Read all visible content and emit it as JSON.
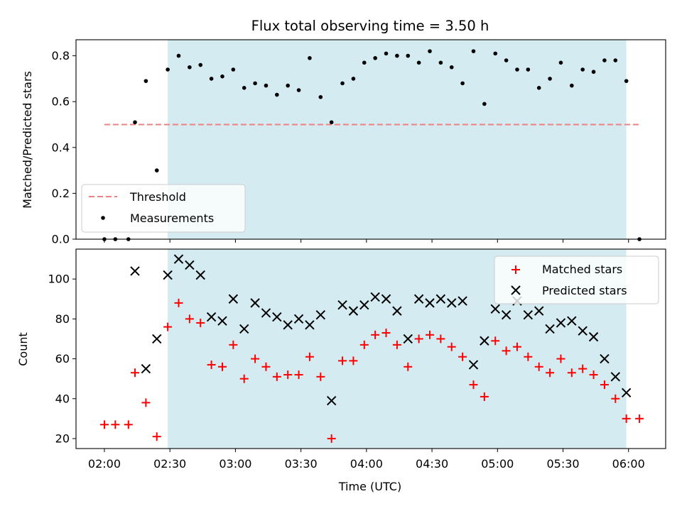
{
  "chart_data": [
    {
      "type": "scatter",
      "title": "Flux total observing time = 3.50 h",
      "xlabel": "",
      "ylabel": "Matched/Predicted stars",
      "xlim": [
        "01:47",
        "06:17"
      ],
      "ylim": [
        0,
        0.87
      ],
      "yticks": [
        0.0,
        0.2,
        0.4,
        0.6,
        0.8
      ],
      "ytick_labels": [
        "0.0",
        "0.2",
        "0.4",
        "0.6",
        "0.8"
      ],
      "shaded_region": {
        "start": "02:29",
        "end": "05:59",
        "color": "#d3ebf1"
      },
      "threshold": {
        "name": "Threshold",
        "value": 0.5,
        "x_start": "02:00",
        "x_end": "06:05",
        "color": "#f08080"
      },
      "legend": {
        "position": "lower-left",
        "entries": [
          "Threshold",
          "Measurements"
        ]
      },
      "series": [
        {
          "name": "Measurements",
          "color": "#000000",
          "marker": "dot",
          "points": [
            [
              "02:00",
              0.0
            ],
            [
              "02:05",
              0.0
            ],
            [
              "02:11",
              0.0
            ],
            [
              "02:14",
              0.51
            ],
            [
              "02:19",
              0.69
            ],
            [
              "02:24",
              0.3
            ],
            [
              "02:29",
              0.74
            ],
            [
              "02:34",
              0.8
            ],
            [
              "02:39",
              0.75
            ],
            [
              "02:44",
              0.76
            ],
            [
              "02:49",
              0.7
            ],
            [
              "02:54",
              0.71
            ],
            [
              "02:59",
              0.74
            ],
            [
              "03:04",
              0.66
            ],
            [
              "03:09",
              0.68
            ],
            [
              "03:14",
              0.67
            ],
            [
              "03:19",
              0.63
            ],
            [
              "03:24",
              0.67
            ],
            [
              "03:29",
              0.65
            ],
            [
              "03:34",
              0.79
            ],
            [
              "03:39",
              0.62
            ],
            [
              "03:44",
              0.51
            ],
            [
              "03:49",
              0.68
            ],
            [
              "03:54",
              0.7
            ],
            [
              "03:59",
              0.77
            ],
            [
              "04:04",
              0.79
            ],
            [
              "04:09",
              0.81
            ],
            [
              "04:14",
              0.8
            ],
            [
              "04:19",
              0.8
            ],
            [
              "04:24",
              0.77
            ],
            [
              "04:29",
              0.82
            ],
            [
              "04:34",
              0.77
            ],
            [
              "04:39",
              0.75
            ],
            [
              "04:44",
              0.68
            ],
            [
              "04:49",
              0.82
            ],
            [
              "04:54",
              0.59
            ],
            [
              "04:59",
              0.81
            ],
            [
              "05:04",
              0.78
            ],
            [
              "05:09",
              0.74
            ],
            [
              "05:14",
              0.74
            ],
            [
              "05:19",
              0.66
            ],
            [
              "05:24",
              0.7
            ],
            [
              "05:29",
              0.77
            ],
            [
              "05:34",
              0.67
            ],
            [
              "05:39",
              0.74
            ],
            [
              "05:44",
              0.73
            ],
            [
              "05:49",
              0.78
            ],
            [
              "05:54",
              0.78
            ],
            [
              "05:59",
              0.69
            ],
            [
              "06:05",
              0.0
            ]
          ]
        }
      ]
    },
    {
      "type": "scatter",
      "title": "",
      "xlabel": "Time (UTC)",
      "ylabel": "Count",
      "xlim": [
        "01:47",
        "06:17"
      ],
      "ylim": [
        15,
        115
      ],
      "yticks": [
        20,
        40,
        60,
        80,
        100
      ],
      "ytick_labels": [
        "20",
        "40",
        "60",
        "80",
        "100"
      ],
      "xticks": [
        "02:00",
        "02:30",
        "03:00",
        "03:30",
        "04:00",
        "04:30",
        "05:00",
        "05:30",
        "06:00"
      ],
      "shaded_region": {
        "start": "02:29",
        "end": "05:59",
        "color": "#d3ebf1"
      },
      "legend": {
        "position": "top-right",
        "entries": [
          "Matched stars",
          "Predicted stars"
        ]
      },
      "series": [
        {
          "name": "Matched stars",
          "color": "#ff0000",
          "marker": "plus",
          "points": [
            [
              "02:00",
              27
            ],
            [
              "02:05",
              27
            ],
            [
              "02:11",
              27
            ],
            [
              "02:14",
              53
            ],
            [
              "02:19",
              38
            ],
            [
              "02:24",
              21
            ],
            [
              "02:29",
              76
            ],
            [
              "02:34",
              88
            ],
            [
              "02:39",
              80
            ],
            [
              "02:44",
              78
            ],
            [
              "02:49",
              57
            ],
            [
              "02:54",
              56
            ],
            [
              "02:59",
              67
            ],
            [
              "03:04",
              50
            ],
            [
              "03:09",
              60
            ],
            [
              "03:14",
              56
            ],
            [
              "03:19",
              51
            ],
            [
              "03:24",
              52
            ],
            [
              "03:29",
              52
            ],
            [
              "03:34",
              61
            ],
            [
              "03:39",
              51
            ],
            [
              "03:44",
              20
            ],
            [
              "03:49",
              59
            ],
            [
              "03:54",
              59
            ],
            [
              "03:59",
              67
            ],
            [
              "04:04",
              72
            ],
            [
              "04:09",
              73
            ],
            [
              "04:14",
              67
            ],
            [
              "04:19",
              56
            ],
            [
              "04:24",
              70
            ],
            [
              "04:29",
              72
            ],
            [
              "04:34",
              70
            ],
            [
              "04:39",
              66
            ],
            [
              "04:44",
              61
            ],
            [
              "04:49",
              47
            ],
            [
              "04:54",
              41
            ],
            [
              "04:59",
              69
            ],
            [
              "05:04",
              64
            ],
            [
              "05:09",
              66
            ],
            [
              "05:14",
              61
            ],
            [
              "05:19",
              56
            ],
            [
              "05:24",
              53
            ],
            [
              "05:29",
              60
            ],
            [
              "05:34",
              53
            ],
            [
              "05:39",
              55
            ],
            [
              "05:44",
              52
            ],
            [
              "05:49",
              47
            ],
            [
              "05:54",
              40
            ],
            [
              "05:59",
              30
            ],
            [
              "06:05",
              30
            ]
          ]
        },
        {
          "name": "Predicted stars",
          "color": "#000000",
          "marker": "x",
          "points": [
            [
              "02:14",
              104
            ],
            [
              "02:19",
              55
            ],
            [
              "02:24",
              70
            ],
            [
              "02:29",
              102
            ],
            [
              "02:34",
              110
            ],
            [
              "02:39",
              107
            ],
            [
              "02:44",
              102
            ],
            [
              "02:49",
              81
            ],
            [
              "02:54",
              79
            ],
            [
              "02:59",
              90
            ],
            [
              "03:04",
              75
            ],
            [
              "03:09",
              88
            ],
            [
              "03:14",
              83
            ],
            [
              "03:19",
              81
            ],
            [
              "03:24",
              77
            ],
            [
              "03:29",
              80
            ],
            [
              "03:34",
              77
            ],
            [
              "03:39",
              82
            ],
            [
              "03:44",
              39
            ],
            [
              "03:49",
              87
            ],
            [
              "03:54",
              84
            ],
            [
              "03:59",
              87
            ],
            [
              "04:04",
              91
            ],
            [
              "04:09",
              90
            ],
            [
              "04:14",
              84
            ],
            [
              "04:19",
              70
            ],
            [
              "04:24",
              90
            ],
            [
              "04:29",
              88
            ],
            [
              "04:34",
              90
            ],
            [
              "04:39",
              88
            ],
            [
              "04:44",
              89
            ],
            [
              "04:49",
              57
            ],
            [
              "04:54",
              69
            ],
            [
              "04:59",
              85
            ],
            [
              "05:04",
              82
            ],
            [
              "05:09",
              89
            ],
            [
              "05:14",
              82
            ],
            [
              "05:19",
              84
            ],
            [
              "05:24",
              75
            ],
            [
              "05:29",
              78
            ],
            [
              "05:34",
              79
            ],
            [
              "05:39",
              74
            ],
            [
              "05:44",
              71
            ],
            [
              "05:49",
              60
            ],
            [
              "05:54",
              51
            ],
            [
              "05:59",
              43
            ]
          ]
        }
      ]
    }
  ]
}
